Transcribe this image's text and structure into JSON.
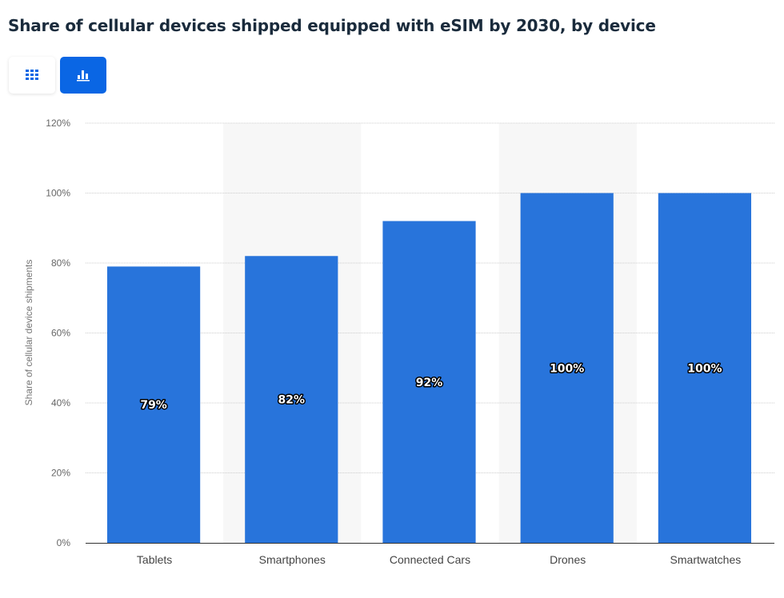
{
  "title": "Share of cellular devices shipped equipped with eSIM by 2030, by device",
  "view_toggle": {
    "table_icon": "grid-icon",
    "chart_icon": "bar-chart-icon",
    "active": "chart"
  },
  "colors": {
    "bar": "#2874db",
    "active_button": "#0a66e4",
    "band": "#f7f7f7"
  },
  "chart_data": {
    "type": "bar",
    "title": "Share of cellular devices shipped equipped with eSIM by 2030, by device",
    "xlabel": "",
    "ylabel": "Share of cellular device shipments",
    "categories": [
      "Tablets",
      "Smartphones",
      "Connected Cars",
      "Drones",
      "Smartwatches"
    ],
    "values": [
      79,
      82,
      92,
      100,
      100
    ],
    "data_labels": [
      "79%",
      "82%",
      "92%",
      "100%",
      "100%"
    ],
    "ylim": [
      0,
      120
    ],
    "yticks": [
      "0%",
      "20%",
      "40%",
      "60%",
      "80%",
      "100%",
      "120%"
    ],
    "grid": true,
    "legend": "none"
  }
}
